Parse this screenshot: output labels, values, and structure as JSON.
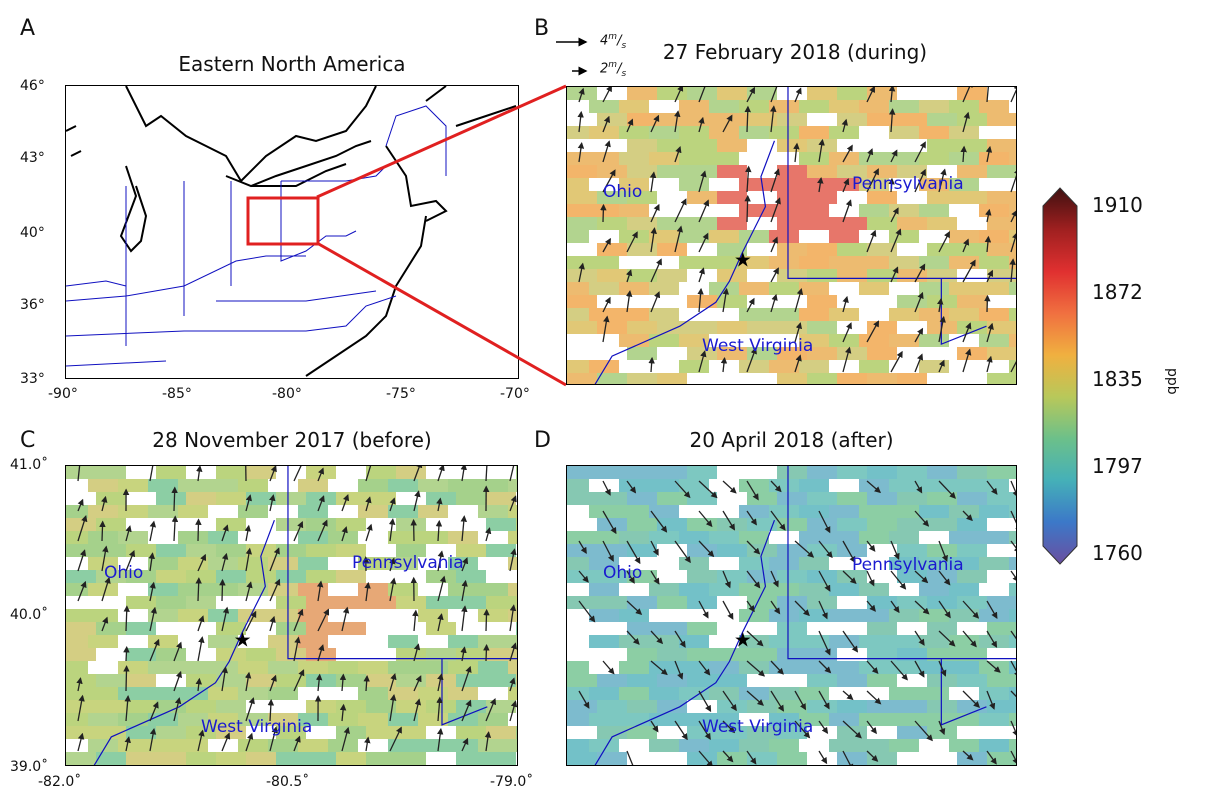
{
  "panels": {
    "A": {
      "label": "A",
      "title": "Eastern North America",
      "lat_ticks": [
        "46°",
        "43°",
        "40°",
        "36°",
        "33°"
      ],
      "lon_ticks": [
        "-90°",
        "-85°",
        "-80°",
        "-75°",
        "-70°"
      ]
    },
    "B": {
      "label": "B",
      "title": "27 February 2018 (during)",
      "states": [
        "Ohio",
        "Pennsylvania",
        "West Virginia"
      ]
    },
    "C": {
      "label": "C",
      "title": "28 November 2017 (before)",
      "lat_ticks": [
        "41.0˚",
        "40.0˚",
        "39.0˚"
      ],
      "lon_ticks": [
        "-82.0˚",
        "-80.5˚",
        "-79.0˚"
      ],
      "states": [
        "Ohio",
        "Pennsylvania",
        "West Virginia"
      ]
    },
    "D": {
      "label": "D",
      "title": "20 April 2018 (after)",
      "states": [
        "Ohio",
        "Pennsylvania",
        "West Virginia"
      ]
    }
  },
  "wind_scale": {
    "large": "4",
    "small": "2",
    "unit_num": "m",
    "unit_den": "s"
  },
  "colorbar": {
    "ticks": [
      "1910",
      "1872",
      "1835",
      "1797",
      "1760"
    ],
    "unit": "ppb",
    "stops": [
      "#6a4fa0",
      "#3c78c8",
      "#45b0b8",
      "#6cc08a",
      "#b8c85a",
      "#f0b040",
      "#f07040",
      "#e03030",
      "#a02020",
      "#401010"
    ]
  },
  "colors": {
    "state_label": "#1a1ad0",
    "inset_box": "#e02020",
    "border": "#1010c0"
  }
}
